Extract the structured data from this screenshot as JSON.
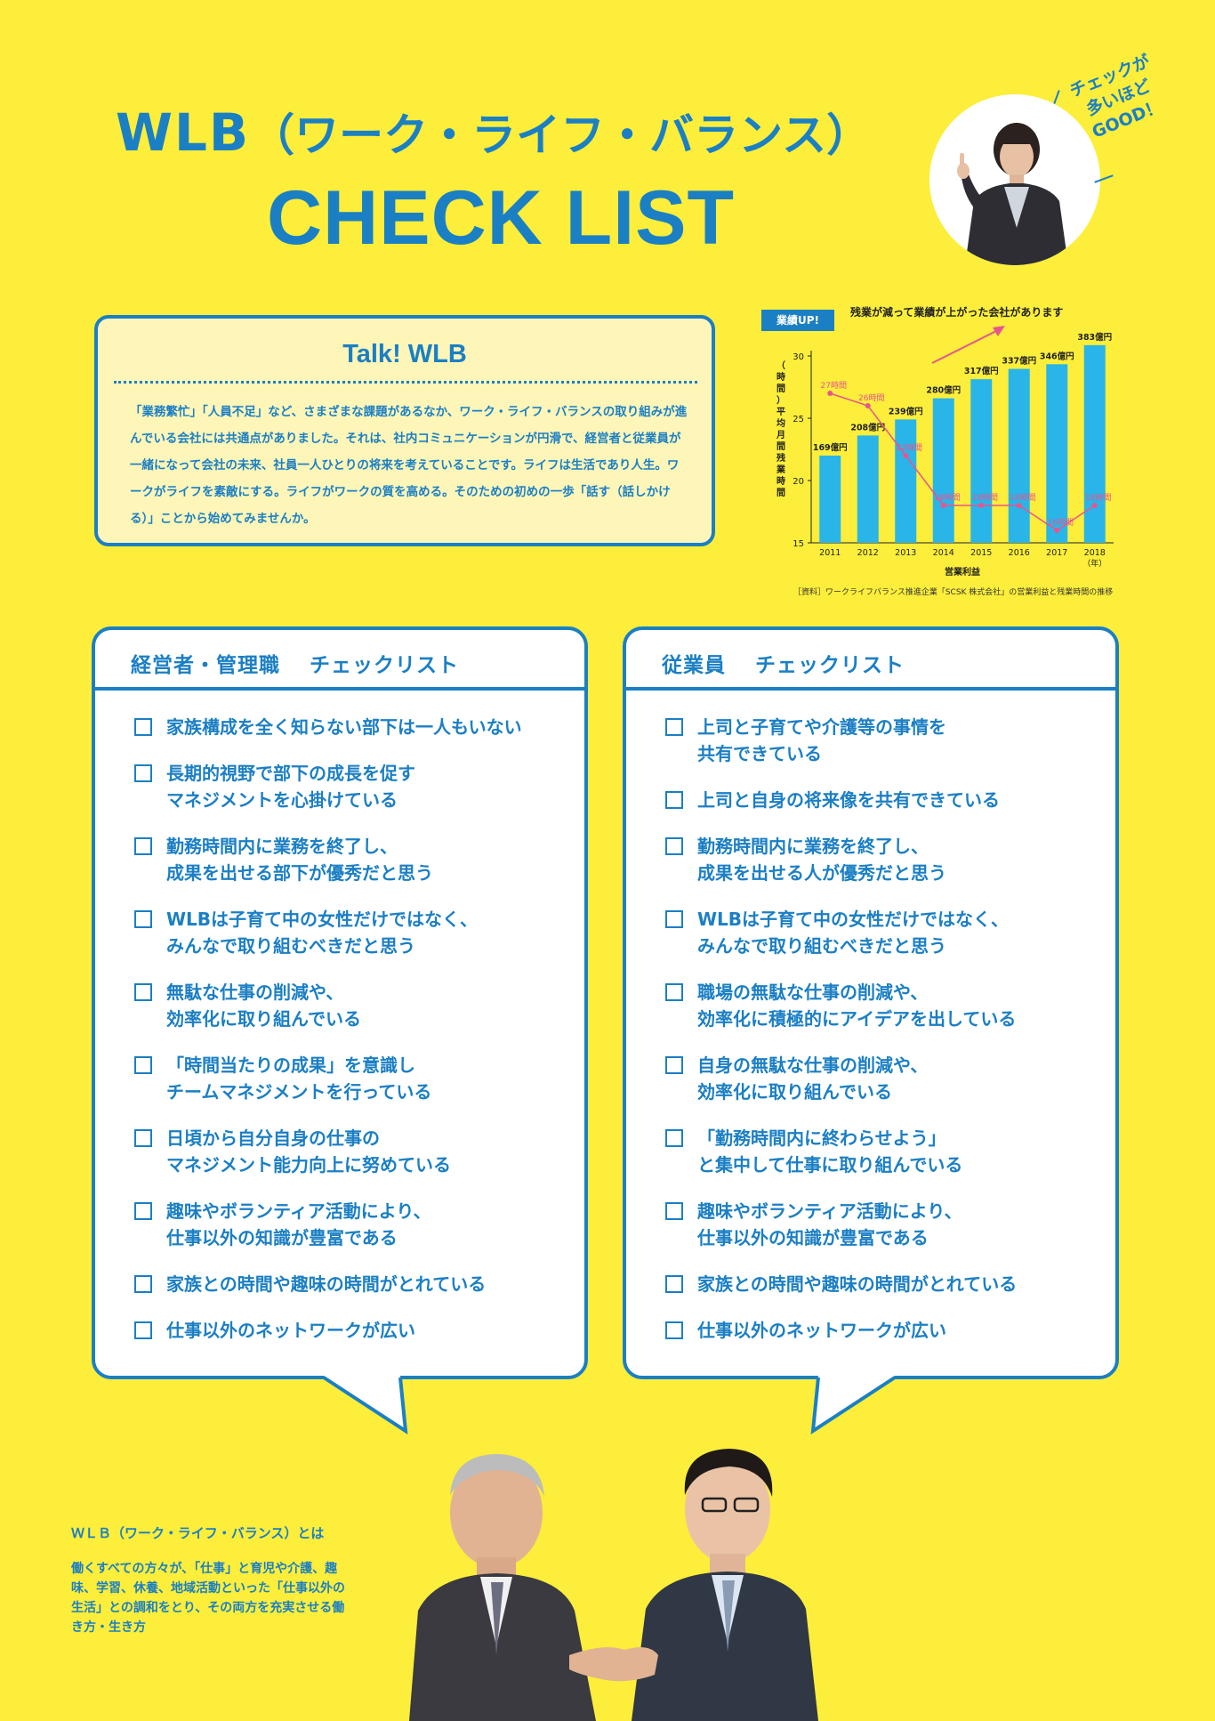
{
  "title": {
    "line1_main": "WLB",
    "line1_sub": "（ワーク・ライフ・バランス）",
    "line2": "CHECK LIST"
  },
  "badge": {
    "text_line1": "チェックが",
    "text_line2": "多いほど",
    "text_line3": "GOOD！"
  },
  "talk": {
    "title": "Talk! WLB",
    "body": "「業務繁忙」「人員不足」など、さまざまな課題があるなか、ワーク・ライフ・バランスの取り組みが進んでいる会社には共通点がありました。それは、社内コミュニケーションが円滑で、経営者と従業員が一緒になって会社の未来、社員一人ひとりの将来を考えていることです。ライフは生活であり人生。ワークがライフを素敵にする。ライフがワークの質を高める。そのための初めの一歩「話す（話しかける）」ことから始めてみませんか。"
  },
  "chart": {
    "tag": "業績UP!",
    "headline": "残業が減って業績が上がった会社があります",
    "source": "［資料］ワークライフバランス推進企業「SCSK 株式会社」の営業利益と残業時間の推移",
    "colors": {
      "bar": "#29b5e8",
      "line": "#e9548e",
      "axis": "#222222"
    }
  },
  "chart_data": {
    "type": "bar",
    "categories": [
      "2011",
      "2012",
      "2013",
      "2014",
      "2015",
      "2016",
      "2017",
      "2018"
    ],
    "xlabel": "営業利益",
    "x_unit": "（年）",
    "ylabel": "平均月間残業時間",
    "y_unit": "（時間）",
    "ylim": [
      15,
      30
    ],
    "yticks": [
      15,
      20,
      25,
      30
    ],
    "grid": false,
    "series": [
      {
        "name": "営業利益",
        "kind": "bar",
        "values": [
          169,
          208,
          239,
          280,
          317,
          337,
          346,
          383
        ],
        "labels": [
          "169億円",
          "208億円",
          "239億円",
          "280億円",
          "317億円",
          "337億円",
          "346億円",
          "383億円"
        ]
      },
      {
        "name": "平均月間残業時間",
        "kind": "line",
        "values": [
          27,
          26,
          22,
          18,
          18,
          18,
          16,
          18
        ],
        "labels": [
          "27時間",
          "26時間",
          "22時間",
          "18時間",
          "18時間",
          "18時間",
          "16時間",
          "18時間"
        ]
      }
    ]
  },
  "checklist_manager": {
    "heading": "経営者・管理職　 チェックリスト",
    "items": [
      "家族構成を全く知らない部下は一人もいない",
      "長期的視野で部下の成長を促す\nマネジメントを心掛けている",
      "勤務時間内に業務を終了し、\n成果を出せる部下が優秀だと思う",
      "WLBは子育て中の女性だけではなく、\nみんなで取り組むべきだと思う",
      "無駄な仕事の削減や、\n効率化に取り組んでいる",
      "「時間当たりの成果」を意識し\nチームマネジメントを行っている",
      "日頃から自分自身の仕事の\nマネジメント能力向上に努めている",
      "趣味やボランティア活動により、\n仕事以外の知識が豊富である",
      "家族との時間や趣味の時間がとれている",
      "仕事以外のネットワークが広い"
    ]
  },
  "checklist_employee": {
    "heading": "従業員　 チェックリスト",
    "items": [
      "上司と子育てや介護等の事情を\n共有できている",
      "上司と自身の将来像を共有できている",
      "勤務時間内に業務を終了し、\n成果を出せる人が優秀だと思う",
      "WLBは子育て中の女性だけではなく、\nみんなで取り組むべきだと思う",
      "職場の無駄な仕事の削減や、\n効率化に積極的にアイデアを出している",
      "自身の無駄な仕事の削減や、\n効率化に取り組んでいる",
      "「勤務時間内に終わらせよう」\nと集中して仕事に取り組んでいる",
      "趣味やボランティア活動により、\n仕事以外の知識が豊富である",
      "家族との時間や趣味の時間がとれている",
      "仕事以外のネットワークが広い"
    ]
  },
  "definition": {
    "title": "ＷＬＢ（ワーク・ライフ・バランス）とは",
    "body": "働くすべての方々が、「仕事」と育児や介護、趣味、学習、休養、地域活動といった「仕事以外の生活」との調和をとり、その両方を充実させる働き方・生き方"
  },
  "theme": {
    "accent": "#1b7fc4",
    "background": "#fcee3a"
  }
}
